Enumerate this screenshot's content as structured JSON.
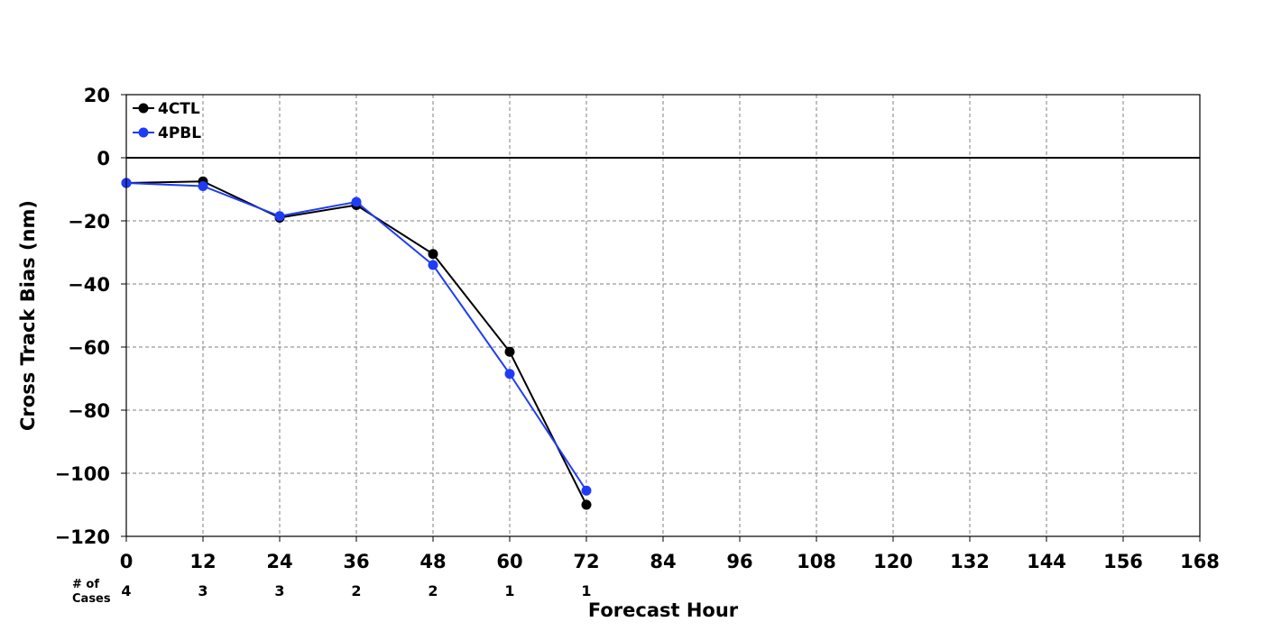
{
  "chart_data": {
    "type": "line",
    "xlabel": "Forecast Hour",
    "ylabel": "Cross Track Bias (nm)",
    "xlim": [
      0,
      168
    ],
    "ylim": [
      -120,
      20
    ],
    "x_ticks": [
      0,
      12,
      24,
      36,
      48,
      60,
      72,
      84,
      96,
      108,
      120,
      132,
      144,
      156,
      168
    ],
    "y_ticks": [
      20,
      0,
      -20,
      -40,
      -60,
      -80,
      -100,
      -120
    ],
    "y_tick_labels": [
      "20",
      "0",
      "−20",
      "−40",
      "−60",
      "−80",
      "−100",
      "−120"
    ],
    "grid": true,
    "zero_line": true,
    "legend_position": "top-left",
    "cases_label_line1": "# of",
    "cases_label_line2": "Cases",
    "cases": [
      {
        "x": 0,
        "count": "4"
      },
      {
        "x": 12,
        "count": "3"
      },
      {
        "x": 24,
        "count": "3"
      },
      {
        "x": 36,
        "count": "2"
      },
      {
        "x": 48,
        "count": "2"
      },
      {
        "x": 60,
        "count": "1"
      },
      {
        "x": 72,
        "count": "1"
      }
    ],
    "series": [
      {
        "name": "4CTL",
        "color": "#000000",
        "x": [
          0,
          12,
          24,
          36,
          48,
          60,
          72
        ],
        "y": [
          -8,
          -7.5,
          -19,
          -15,
          -30.5,
          -61.5,
          -110
        ]
      },
      {
        "name": "4PBL",
        "color": "#1f3cf5",
        "x": [
          0,
          12,
          24,
          36,
          48,
          60,
          72
        ],
        "y": [
          -8,
          -9,
          -18.5,
          -14,
          -34,
          -68.5,
          -105.5
        ]
      }
    ]
  }
}
